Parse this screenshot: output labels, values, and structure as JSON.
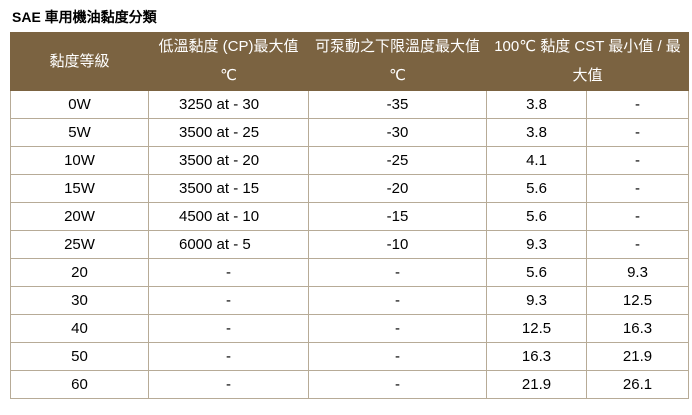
{
  "title": "SAE 車用機油黏度分類",
  "headers": {
    "grade": "黏度等級",
    "cp_top": "低溫黏度 (CP)最大值",
    "cp_unit": "℃",
    "pump_top": "可泵動之下限溫度最大值",
    "pump_unit": "℃",
    "cst_top": "100℃ 黏度 CST 最小值 / 最",
    "cst_bottom": "大值"
  },
  "rows": [
    {
      "grade": "0W",
      "cp": "3250 at - 30",
      "pump": "-35",
      "min": "3.8",
      "max": "-"
    },
    {
      "grade": "5W",
      "cp": "3500 at - 25",
      "pump": "-30",
      "min": "3.8",
      "max": "-"
    },
    {
      "grade": "10W",
      "cp": "3500 at - 20",
      "pump": "-25",
      "min": "4.1",
      "max": "-"
    },
    {
      "grade": "15W",
      "cp": "3500 at - 15",
      "pump": "-20",
      "min": "5.6",
      "max": "-"
    },
    {
      "grade": "20W",
      "cp": "4500 at - 10",
      "pump": "-15",
      "min": "5.6",
      "max": "-"
    },
    {
      "grade": "25W",
      "cp": "6000 at - 5",
      "pump": "-10",
      "min": "9.3",
      "max": "-"
    },
    {
      "grade": "20",
      "cp": "-",
      "pump": "-",
      "min": "5.6",
      "max": "9.3"
    },
    {
      "grade": "30",
      "cp": "-",
      "pump": "-",
      "min": "9.3",
      "max": "12.5"
    },
    {
      "grade": "40",
      "cp": "-",
      "pump": "-",
      "min": "12.5",
      "max": "16.3"
    },
    {
      "grade": "50",
      "cp": "-",
      "pump": "-",
      "min": "16.3",
      "max": "21.9"
    },
    {
      "grade": "60",
      "cp": "-",
      "pump": "-",
      "min": "21.9",
      "max": "26.1"
    }
  ]
}
